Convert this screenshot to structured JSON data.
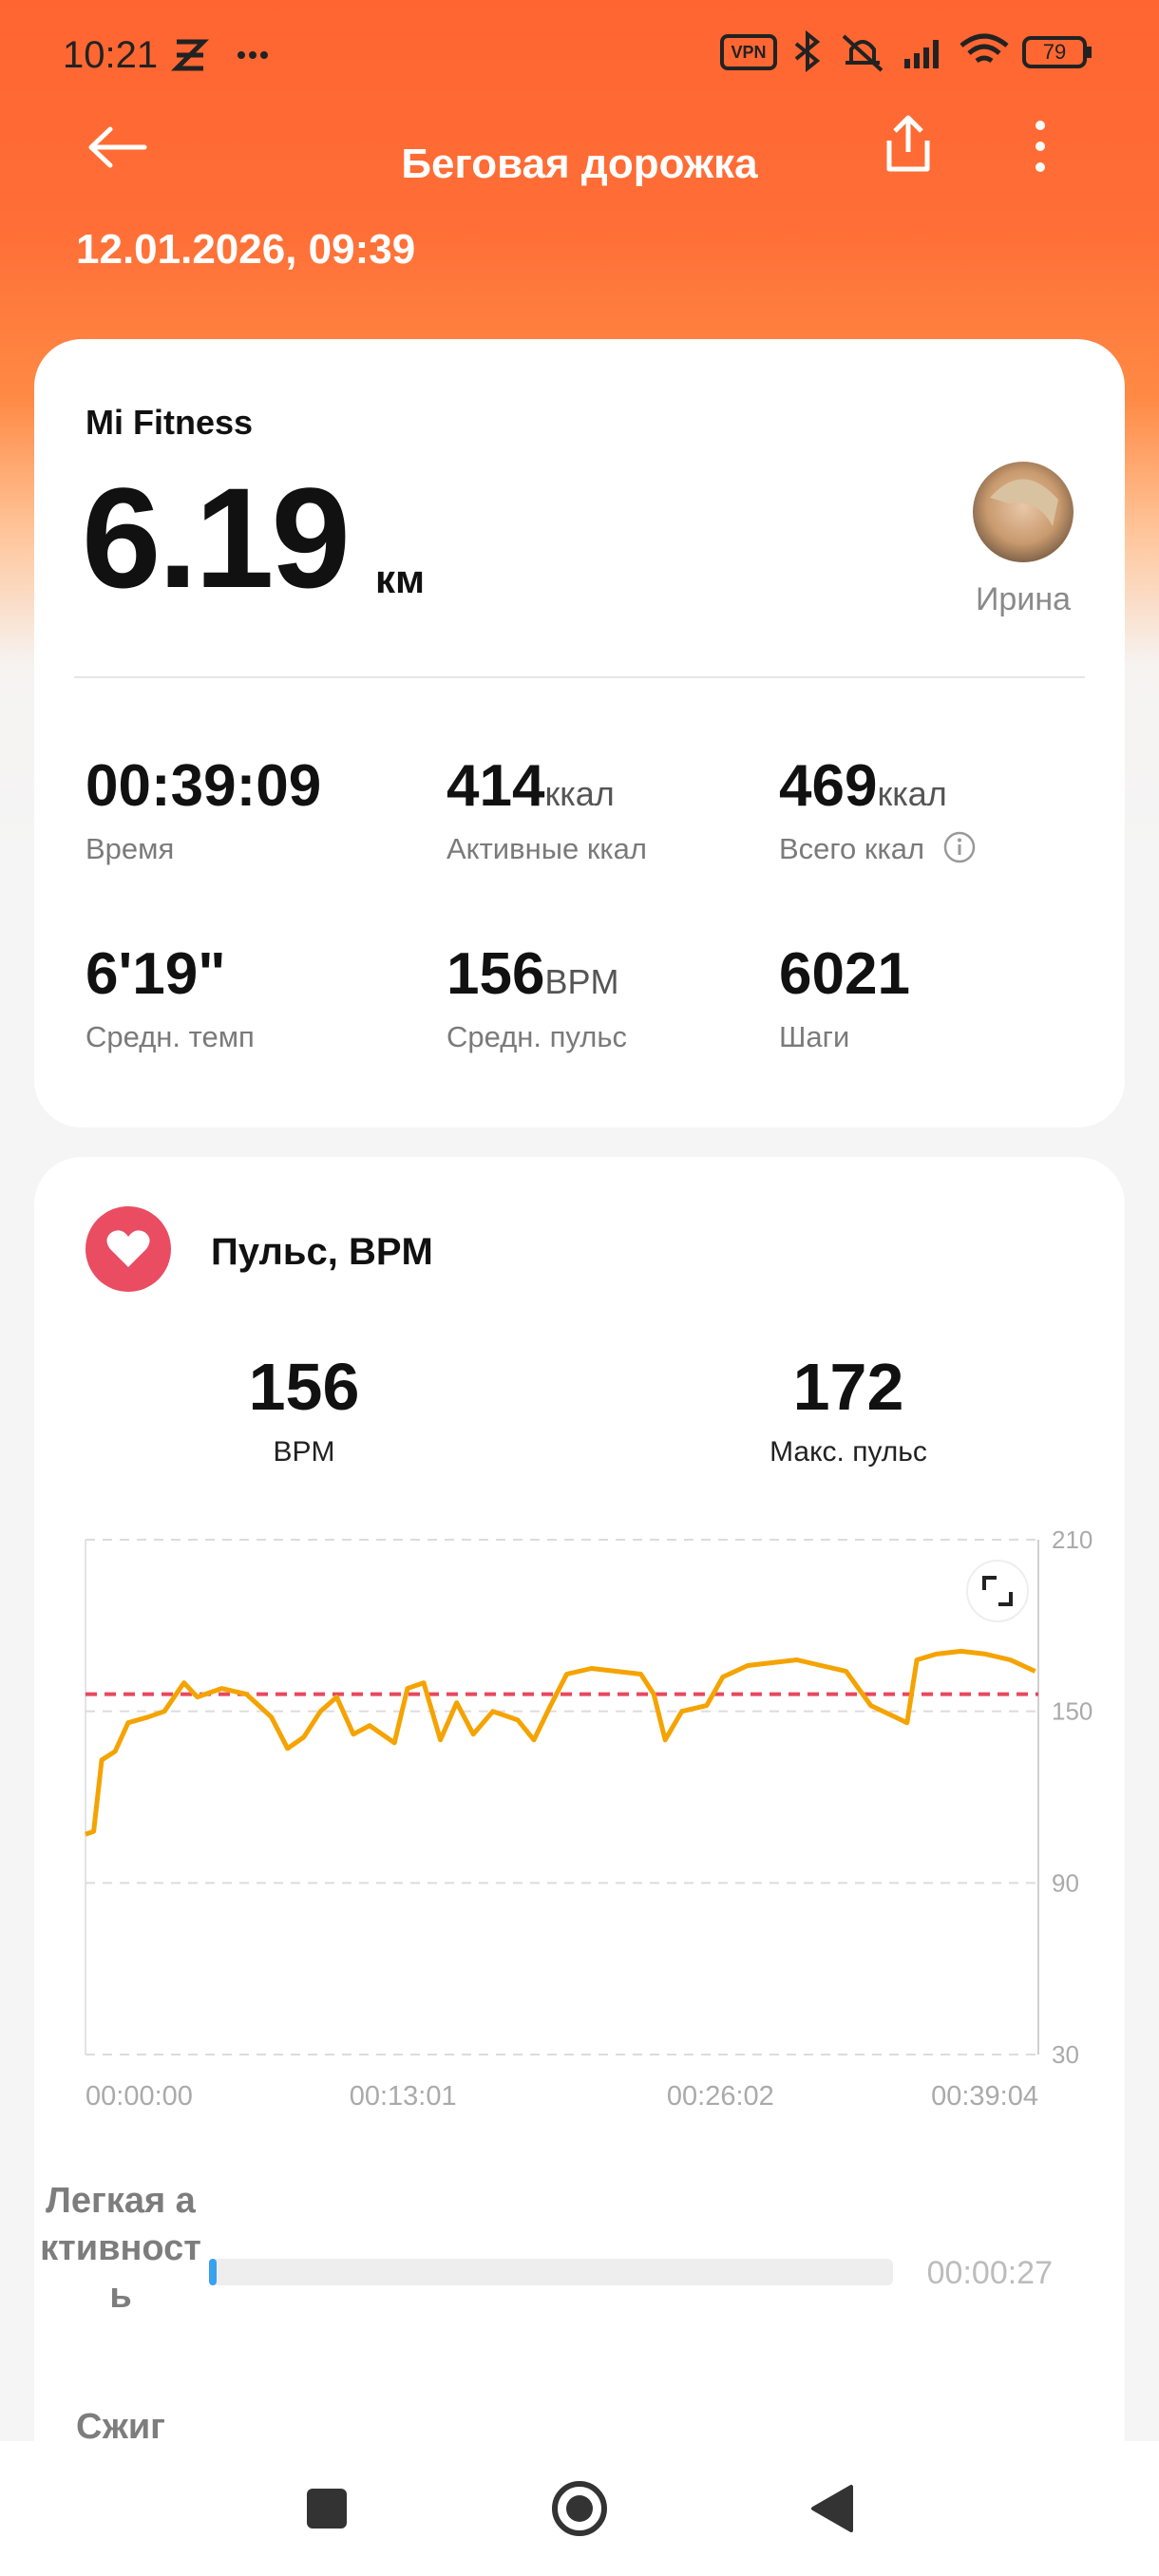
{
  "status_bar": {
    "time": "10:21",
    "battery": "79"
  },
  "header": {
    "title": "Беговая дорожка",
    "date": "12.01.2026, 09:39"
  },
  "summary": {
    "source": "Mi Fitness",
    "distance": "6.19",
    "distance_unit": "км",
    "user": "Ирина",
    "stats": [
      {
        "value": "00:39:09",
        "unit": null,
        "label": "Время"
      },
      {
        "value": "414",
        "unit": "ккал",
        "label": "Активные ккал"
      },
      {
        "value": "469",
        "unit": "ккал",
        "label": "Всего ккал"
      },
      {
        "value": "6'19\"",
        "unit": null,
        "label": "Средн. темп"
      },
      {
        "value": "156",
        "unit": "BPM",
        "label": "Средн. пульс"
      },
      {
        "value": "6021",
        "unit": null,
        "label": "Шаги"
      }
    ]
  },
  "heart_rate": {
    "title": "Пульс, BPM",
    "avg_value": "156",
    "avg_label": "BPM",
    "max_value": "172",
    "max_label": "Макс. пульс",
    "zones": [
      {
        "label": "Легкая активность",
        "duration": "00:00:27"
      },
      {
        "label": "Сжиг"
      }
    ]
  },
  "chart_data": {
    "type": "line",
    "reference_line": 156,
    "reference_color": "#e8475f",
    "x": [
      0,
      20,
      40,
      73,
      105,
      154,
      194,
      242,
      275,
      335,
      396,
      457,
      497,
      537,
      578,
      618,
      659,
      699,
      760,
      792,
      832,
      873,
      913,
      954,
      1002,
      1063,
      1103,
      1144,
      1184,
      1245,
      1305,
      1366,
      1398,
      1426,
      1467,
      1528,
      1568,
      1629,
      1689,
      1750,
      1810,
      1871,
      1932,
      1992,
      2021,
      2045,
      2093,
      2154,
      2214,
      2275,
      2336
    ],
    "series": [
      {
        "name": null,
        "color": "#f5a300",
        "values": [
          107,
          108,
          133,
          136,
          146,
          148,
          150,
          160,
          155,
          158,
          156,
          148,
          137,
          141,
          150,
          155,
          142,
          145,
          139,
          158,
          160,
          140,
          153,
          142,
          150,
          147,
          140,
          152,
          163,
          165,
          164,
          163,
          156,
          140,
          150,
          152,
          162,
          166,
          167,
          168,
          166,
          164,
          152,
          148,
          146,
          168,
          170,
          171,
          170,
          168,
          164
        ]
      }
    ],
    "xlim": [
      0,
      2344
    ],
    "xticks": [
      {
        "value": 0,
        "label": "00:00:00"
      },
      {
        "value": 781,
        "label": "00:13:01"
      },
      {
        "value": 1562,
        "label": "00:26:02"
      },
      {
        "value": 2344,
        "label": "00:39:04"
      }
    ],
    "ylim": [
      30,
      210
    ],
    "yticks": [
      30,
      90,
      150,
      210
    ],
    "grid": true
  }
}
